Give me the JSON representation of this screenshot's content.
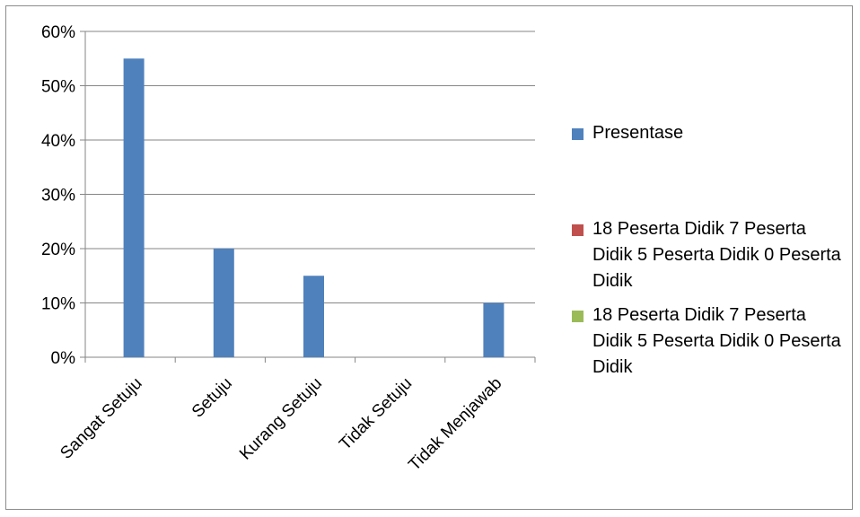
{
  "chart_data": {
    "type": "bar",
    "categories": [
      "Sangat Setuju",
      "Setuju",
      "Kurang Setuju",
      "Tidak Setuju",
      "Tidak Menjawab"
    ],
    "series": [
      {
        "name": "Presentase",
        "values": [
          0.55,
          0.2,
          0.15,
          0.0,
          0.1
        ],
        "color": "#4f81bd"
      },
      {
        "name": "18 Peserta Didik 7 Peserta Didik 5 Peserta Didik 0 Peserta Didik",
        "values": [
          0,
          0,
          0,
          0,
          0
        ],
        "color": "#c0504d"
      },
      {
        "name": "18 Peserta Didik 7 Peserta Didik 5 Peserta Didik 0 Peserta Didik",
        "values": [
          0,
          0,
          0,
          0,
          0
        ],
        "color": "#9bbb59"
      }
    ],
    "y_ticks": [
      "0%",
      "10%",
      "20%",
      "30%",
      "40%",
      "50%",
      "60%"
    ],
    "ylim": [
      0,
      0.6
    ],
    "grid": true,
    "legend_position": "right",
    "title": "",
    "xlabel": "",
    "ylabel": ""
  }
}
